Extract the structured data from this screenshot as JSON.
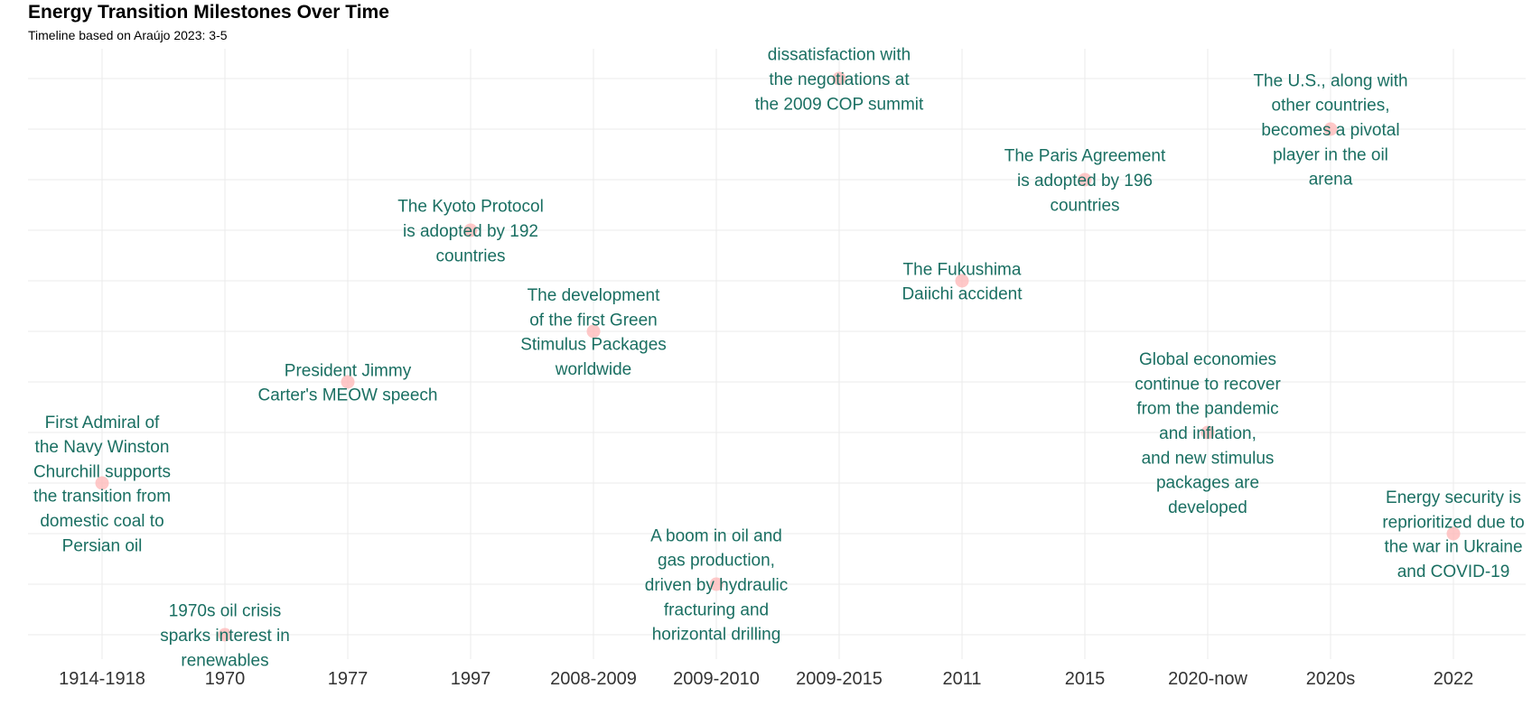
{
  "chart_data": {
    "type": "scatter",
    "title": "Energy Transition Milestones Over Time",
    "subtitle": "Timeline based on Araújo 2023: 3-5",
    "xlabel": "",
    "ylabel": "",
    "categories": [
      "1914-1918",
      "1970",
      "1977",
      "1997",
      "2008-2009",
      "2009-2010",
      "2009-2015",
      "2011",
      "2015",
      "2020-now",
      "2020s",
      "2022"
    ],
    "grid": true,
    "legend": "none",
    "colors": {
      "point": "#FFB6B6",
      "label": "#1A6F62",
      "grid": "#EBEBEB",
      "tick": "#333333"
    },
    "points": [
      {
        "x": "1914-1918",
        "level": 4,
        "lines": [
          "First Admiral of",
          "the Navy Winston",
          "Churchill supports",
          "the transition from",
          "domestic coal to",
          "Persian oil"
        ]
      },
      {
        "x": "1970",
        "level": 1,
        "lines": [
          "1970s oil crisis",
          "sparks interest in",
          "renewables"
        ]
      },
      {
        "x": "1977",
        "level": 6,
        "lines": [
          "President Jimmy",
          "Carter's MEOW speech"
        ]
      },
      {
        "x": "1997",
        "level": 9,
        "lines": [
          "The Kyoto Protocol",
          "is adopted by 192",
          "countries"
        ]
      },
      {
        "x": "2008-2009",
        "level": 7,
        "lines": [
          "The development",
          "of the first Green",
          "Stimulus Packages",
          "worldwide"
        ]
      },
      {
        "x": "2009-2010",
        "level": 2,
        "lines": [
          "A boom in oil and",
          "gas production,",
          "driven by hydraulic",
          "fracturing and",
          "horizontal drilling"
        ]
      },
      {
        "x": "2009-2015",
        "level": 12,
        "lines": [
          "dissatisfaction with",
          "the negotiations at",
          "the 2009 COP summit"
        ]
      },
      {
        "x": "2011",
        "level": 8,
        "lines": [
          "The Fukushima",
          "Daiichi accident"
        ]
      },
      {
        "x": "2015",
        "level": 10,
        "lines": [
          "The Paris Agreement",
          "is adopted by 196",
          "countries"
        ]
      },
      {
        "x": "2020-now",
        "level": 5,
        "lines": [
          "Global economies",
          "continue to recover",
          "from the pandemic",
          "and inflation,",
          "and new stimulus",
          "packages are",
          "developed"
        ]
      },
      {
        "x": "2020s",
        "level": 11,
        "lines": [
          "The U.S., along with",
          "other countries,",
          "becomes a pivotal",
          "player in the oil",
          "arena"
        ]
      },
      {
        "x": "2022",
        "level": 3,
        "lines": [
          "Energy security is",
          "reprioritized due to",
          "the war in Ukraine",
          "and COVID-19"
        ]
      }
    ]
  }
}
